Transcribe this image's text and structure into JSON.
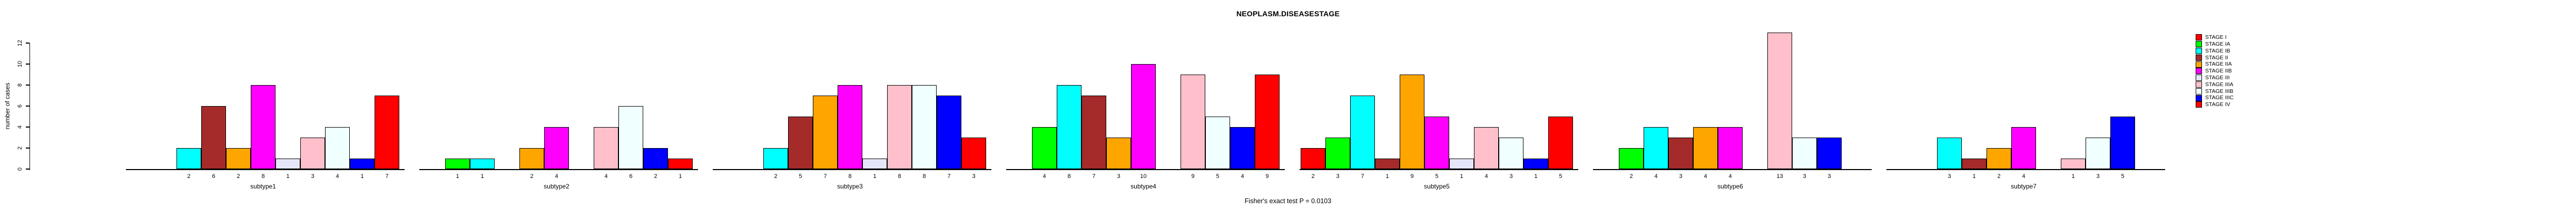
{
  "title": "NEOPLASM.DISEASESTAGE",
  "ylabel": "number of cases",
  "footer": "Fisher's exact test P = 0.0103",
  "yticks": [
    0,
    2,
    4,
    6,
    8,
    10,
    12
  ],
  "legend": [
    {
      "label": "STAGE I",
      "color": "#FF0000"
    },
    {
      "label": "STAGE IA",
      "color": "#00FF00"
    },
    {
      "label": "STAGE IB",
      "color": "#00FFFF"
    },
    {
      "label": "STAGE II",
      "color": "#A52A2A"
    },
    {
      "label": "STAGE IIA",
      "color": "#FFA500"
    },
    {
      "label": "STAGE IIB",
      "color": "#FF00FF"
    },
    {
      "label": "STAGE III",
      "color": "#E6E6FA"
    },
    {
      "label": "STAGE IIIA",
      "color": "#FFC0CB"
    },
    {
      "label": "STAGE IIIB",
      "color": "#F0FFFF"
    },
    {
      "label": "STAGE IIIC",
      "color": "#0000FF"
    },
    {
      "label": "STAGE IV",
      "color": "#FF0000"
    }
  ],
  "chart_data": {
    "type": "bar",
    "title": "NEOPLASM.DISEASESTAGE",
    "xlabel": "",
    "ylabel": "number of cases",
    "ylim": [
      0,
      13
    ],
    "yticks": [
      0,
      2,
      4,
      6,
      8,
      10,
      12
    ],
    "grid": false,
    "legend_position": "top-right",
    "annotation": "Fisher's exact test P = 0.0103",
    "bar_value_labels_on_x_axis": true,
    "stages": [
      "STAGE I",
      "STAGE IA",
      "STAGE IB",
      "STAGE II",
      "STAGE IIA",
      "STAGE IIB",
      "STAGE III",
      "STAGE IIIA",
      "STAGE IIIB",
      "STAGE IIIC",
      "STAGE IV"
    ],
    "stage_colors": [
      "#FF0000",
      "#00FF00",
      "#00FFFF",
      "#A52A2A",
      "#FFA500",
      "#FF00FF",
      "#E6E6FA",
      "#FFC0CB",
      "#F0FFFF",
      "#0000FF",
      "#FF0000"
    ],
    "groups": [
      {
        "label": "subtype1",
        "values": [
          null,
          null,
          2,
          6,
          2,
          8,
          1,
          3,
          4,
          1,
          7
        ]
      },
      {
        "label": "subtype2",
        "values": [
          null,
          1,
          1,
          null,
          2,
          4,
          null,
          4,
          6,
          2,
          1
        ]
      },
      {
        "label": "subtype3",
        "values": [
          null,
          null,
          2,
          5,
          7,
          8,
          1,
          8,
          8,
          7,
          3
        ]
      },
      {
        "label": "subtype4",
        "values": [
          null,
          4,
          8,
          7,
          3,
          10,
          null,
          9,
          5,
          4,
          9
        ]
      },
      {
        "label": "subtype5",
        "values": [
          2,
          3,
          7,
          1,
          9,
          5,
          1,
          4,
          3,
          1,
          5
        ]
      },
      {
        "label": "subtype6",
        "values": [
          null,
          2,
          4,
          3,
          4,
          4,
          null,
          13,
          3,
          3,
          null
        ]
      },
      {
        "label": "subtype7",
        "values": [
          null,
          null,
          3,
          1,
          2,
          4,
          null,
          1,
          3,
          5,
          null
        ]
      }
    ]
  }
}
